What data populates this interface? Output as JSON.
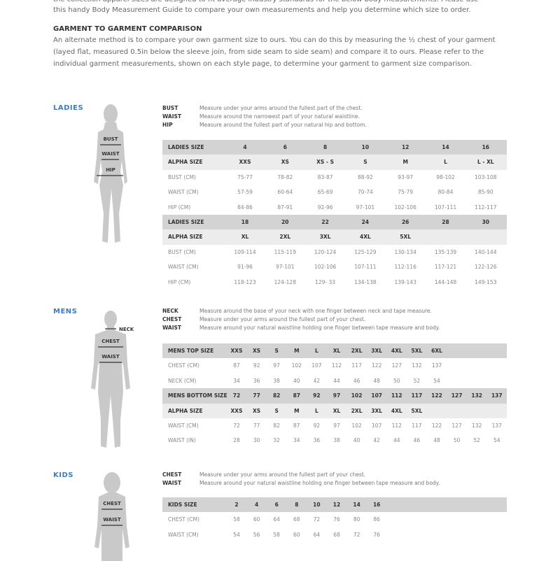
{
  "intro": {
    "line1": "the collection apparel sizes are designed to fit average industry standards for the below body measurements. Please use",
    "line2": "this handy Body Measurement Guide to compare your own measurements and help you determine which size to order."
  },
  "garment": {
    "heading": "GARMENT TO GARMENT COMPARISON",
    "text": "An alternate method is to compare your own garment size to ours. You can do this by measuring the ½ chest of your garment (layed flat, measured 0.5in below the sleeve join, from side seam to side seam) and compare it to ours. Please refer to the individual garment measurements, shown on each style page, to determine your garment to garment size comparison."
  },
  "accent_color": "#3b7fc2",
  "ladies": {
    "title": "LADIES",
    "figure_labels": [
      "BUST",
      "WAIST",
      "HIP"
    ],
    "defs": [
      {
        "k": "BUST",
        "v": "Measure under your arms around the fullest part of the chest."
      },
      {
        "k": "WAIST",
        "v": "Measure around the narrowest part of your natural waistline."
      },
      {
        "k": "HIP",
        "v": "Measure around the fullest part of your natural hip and bottom."
      }
    ],
    "rows": [
      {
        "style": "dark",
        "label": "LADIES SIZE",
        "cells": [
          "4",
          "6",
          "8",
          "10",
          "12",
          "14",
          "16"
        ]
      },
      {
        "style": "light",
        "label": "ALPHA SIZE",
        "cells": [
          "XXS",
          "XS",
          "XS - S",
          "S",
          "M",
          "L",
          "L - XL"
        ]
      },
      {
        "style": "",
        "label": "BUST (CM)",
        "cells": [
          "75-77",
          "78-82",
          "83-87",
          "88-92",
          "93-97",
          "98-102",
          "103-108"
        ]
      },
      {
        "style": "",
        "label": "WAIST (CM)",
        "cells": [
          "57-59",
          "60-64",
          "65-69",
          "70-74",
          "75-79",
          "80-84",
          "85-90"
        ]
      },
      {
        "style": "",
        "label": "HIP (CM)",
        "cells": [
          "84-86",
          "87-91",
          "92-96",
          "97-101",
          "102-106",
          "107-111",
          "112-117"
        ]
      },
      {
        "style": "dark",
        "label": "LADIES SIZE",
        "cells": [
          "18",
          "20",
          "22",
          "24",
          "26",
          "28",
          "30"
        ]
      },
      {
        "style": "light",
        "label": "ALPHA SIZE",
        "cells": [
          "XL",
          "2XL",
          "3XL",
          "4XL",
          "5XL",
          "",
          ""
        ]
      },
      {
        "style": "",
        "label": "BUST (CM)",
        "cells": [
          "109-114",
          "115-119",
          "120-124",
          "125-129",
          "130-134",
          "135-139",
          "140-144"
        ]
      },
      {
        "style": "",
        "label": "WAIST (CM)",
        "cells": [
          "91-96",
          "97-101",
          "102-106",
          "107-111",
          "112-116",
          "117-121",
          "122-126"
        ]
      },
      {
        "style": "",
        "label": "HIP (CM)",
        "cells": [
          "118-123",
          "124-128",
          "129- 33",
          "134-138",
          "139-143",
          "144-148",
          "149-153"
        ]
      }
    ]
  },
  "mens": {
    "title": "MENS",
    "figure_labels": [
      "NECK",
      "CHEST",
      "WAIST"
    ],
    "defs": [
      {
        "k": "NECK",
        "v": "Measure around the base of your neck with one finger between neck and tape measure."
      },
      {
        "k": "CHEST",
        "v": "Measure under your arms around the fullest part of your chest."
      },
      {
        "k": "WAIST",
        "v": "Measure around your natural waistline holding one finger between tape measure and body."
      }
    ],
    "rows": [
      {
        "style": "dark",
        "label": "MENS TOP SIZE",
        "cells": [
          "XXS",
          "XS",
          "S",
          "M",
          "L",
          "XL",
          "2XL",
          "3XL",
          "4XL",
          "5XL",
          "6XL"
        ]
      },
      {
        "style": "",
        "label": "CHEST (CM)",
        "cells": [
          "87",
          "92",
          "97",
          "102",
          "107",
          "112",
          "117",
          "122",
          "127",
          "132",
          "137"
        ]
      },
      {
        "style": "",
        "label": "NECK (CM)",
        "cells": [
          "34",
          "36",
          "38",
          "40",
          "42",
          "44",
          "46",
          "48",
          "50",
          "52",
          "54"
        ]
      },
      {
        "style": "dark",
        "label": "MENS BOTTOM  SIZE",
        "cells": [
          "72",
          "77",
          "82",
          "87",
          "92",
          "97",
          "102",
          "107",
          "112",
          "117",
          "122",
          "127",
          "132",
          "137"
        ]
      },
      {
        "style": "light",
        "label": "ALPHA SIZE",
        "cells": [
          "XXS",
          "XS",
          "S",
          "M",
          "L",
          "XL",
          "2XL",
          "3XL",
          "4XL",
          "5XL"
        ]
      },
      {
        "style": "",
        "label": "WAIST (CM)",
        "cells": [
          "72",
          "77",
          "82",
          "87",
          "92",
          "97",
          "102",
          "107",
          "112",
          "117",
          "122",
          "127",
          "132",
          "137"
        ]
      },
      {
        "style": "",
        "label": "WAIST (IN)",
        "cells": [
          "28",
          "30",
          "32",
          "34",
          "36",
          "38",
          "40",
          "42",
          "44",
          "46",
          "48",
          "50",
          "52",
          "54"
        ]
      }
    ]
  },
  "kids": {
    "title": "KIDS",
    "figure_labels": [
      "CHEST",
      "WAIST"
    ],
    "defs": [
      {
        "k": "CHEST",
        "v": "Measure under your arms around the fullest part of your chest."
      },
      {
        "k": "WAIST",
        "v": "Measure around your natural waistline holding one finger between tape measure and body."
      }
    ],
    "rows": [
      {
        "style": "dark",
        "label": "KIDS SIZE",
        "cells": [
          "2",
          "4",
          "6",
          "8",
          "10",
          "12",
          "14",
          "16"
        ]
      },
      {
        "style": "",
        "label": "CHEST (CM)",
        "cells": [
          "58",
          "60",
          "64",
          "68",
          "72",
          "76",
          "80",
          "86"
        ]
      },
      {
        "style": "",
        "label": "WAIST (CM)",
        "cells": [
          "54",
          "56",
          "58",
          "60",
          "64",
          "68",
          "72",
          "76"
        ]
      }
    ]
  }
}
